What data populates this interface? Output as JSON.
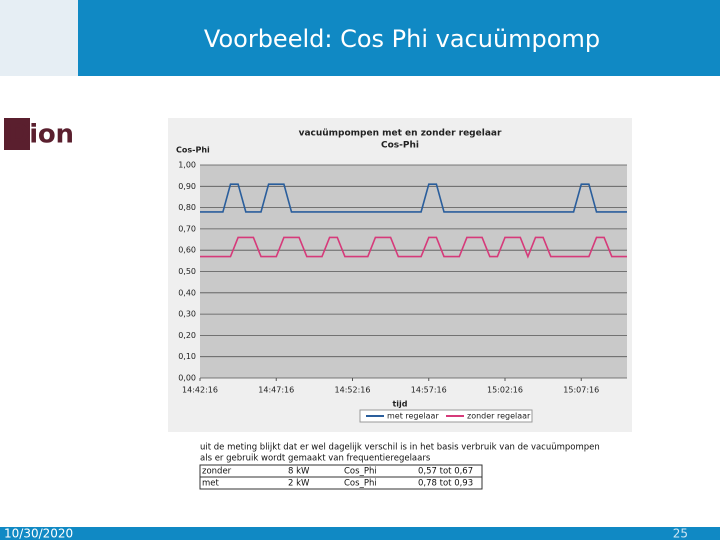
{
  "slide": {
    "title": "Voorbeeld: Cos Phi vacuümpomp",
    "logo": "Dion",
    "date": "10/30/2020",
    "page": "25"
  },
  "chart_data": {
    "type": "line",
    "title": [
      "vacuümpompen met en zonder regelaar",
      "Cos-Phi"
    ],
    "y_label": "Cos-Phi",
    "x_label": "tijd",
    "x": [
      0,
      0.5,
      1,
      1.5,
      2,
      2.5,
      3,
      3.5,
      4,
      4.5,
      5,
      5.5,
      6,
      6.5,
      7,
      7.5,
      8,
      8.5,
      9,
      9.5,
      10,
      10.5,
      11,
      11.5,
      12,
      12.5,
      13,
      13.5,
      14,
      14.5,
      15,
      15.5,
      16,
      16.5,
      17,
      17.5,
      18,
      18.5,
      19,
      19.5,
      20,
      20.5,
      21,
      21.5,
      22,
      22.5,
      23,
      23.5,
      24,
      24.5,
      25,
      25.5,
      26,
      26.5,
      27,
      27.5,
      28
    ],
    "series": [
      {
        "name": "met regelaar",
        "color": "#2a5e9c",
        "values": [
          0.78,
          0.78,
          0.78,
          0.78,
          0.91,
          0.91,
          0.78,
          0.78,
          0.78,
          0.91,
          0.91,
          0.91,
          0.78,
          0.78,
          0.78,
          0.78,
          0.78,
          0.78,
          0.78,
          0.78,
          0.78,
          0.78,
          0.78,
          0.78,
          0.78,
          0.78,
          0.78,
          0.78,
          0.78,
          0.78,
          0.91,
          0.91,
          0.78,
          0.78,
          0.78,
          0.78,
          0.78,
          0.78,
          0.78,
          0.78,
          0.78,
          0.78,
          0.78,
          0.78,
          0.78,
          0.78,
          0.78,
          0.78,
          0.78,
          0.78,
          0.91,
          0.91,
          0.78,
          0.78,
          0.78,
          0.78,
          0.78
        ]
      },
      {
        "name": "zonder regelaar",
        "color": "#d63a7a",
        "values": [
          0.57,
          0.57,
          0.57,
          0.57,
          0.57,
          0.66,
          0.66,
          0.66,
          0.57,
          0.57,
          0.57,
          0.66,
          0.66,
          0.66,
          0.57,
          0.57,
          0.57,
          0.66,
          0.66,
          0.57,
          0.57,
          0.57,
          0.57,
          0.66,
          0.66,
          0.66,
          0.57,
          0.57,
          0.57,
          0.57,
          0.66,
          0.66,
          0.57,
          0.57,
          0.57,
          0.66,
          0.66,
          0.66,
          0.57,
          0.57,
          0.66,
          0.66,
          0.66,
          0.57,
          0.66,
          0.66,
          0.57,
          0.57,
          0.57,
          0.57,
          0.57,
          0.57,
          0.66,
          0.66,
          0.57,
          0.57,
          0.57
        ]
      }
    ],
    "xlim": [
      0,
      28
    ],
    "xticks": [
      {
        "value": 0,
        "label": "14:42:16"
      },
      {
        "value": 5,
        "label": "14:47:16"
      },
      {
        "value": 10,
        "label": "14:52:16"
      },
      {
        "value": 15,
        "label": "14:57:16"
      },
      {
        "value": 20,
        "label": "15:02:16"
      },
      {
        "value": 25,
        "label": "15:07:16"
      }
    ],
    "ylim": [
      0,
      1
    ],
    "yticks": [
      {
        "value": 0,
        "label": "0,00"
      },
      {
        "value": 0.1,
        "label": "0,10"
      },
      {
        "value": 0.2,
        "label": "0,20"
      },
      {
        "value": 0.3,
        "label": "0,30"
      },
      {
        "value": 0.4,
        "label": "0,40"
      },
      {
        "value": 0.5,
        "label": "0,50"
      },
      {
        "value": 0.6,
        "label": "0,60"
      },
      {
        "value": 0.7,
        "label": "0,70"
      },
      {
        "value": 0.8,
        "label": "0,80"
      },
      {
        "value": 0.9,
        "label": "0,90"
      },
      {
        "value": 1,
        "label": "1,00"
      }
    ],
    "grid": true,
    "legend": "bottom"
  },
  "note": [
    "uit de meting blijkt dat er wel dagelijk verschil is in het basis verbruik van de vacuümpompen",
    "als er gebruik wordt gemaakt van frequentieregelaars"
  ],
  "table": {
    "rows": [
      [
        "zonder",
        "8 kW",
        "Cos_Phi",
        "0,57 tot 0,67"
      ],
      [
        "met",
        "2 kW",
        "Cos_Phi",
        "0,78 tot 0,93"
      ]
    ]
  }
}
